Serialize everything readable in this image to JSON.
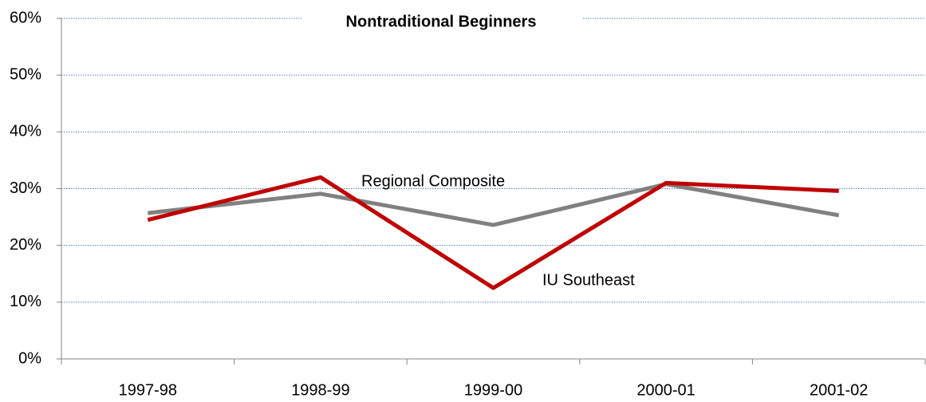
{
  "chart_data": {
    "type": "line",
    "title": "Nontraditional Beginners",
    "categories": [
      "1997-98",
      "1998-99",
      "1999-00",
      "2000-01",
      "2001-02"
    ],
    "series": [
      {
        "name": "IU Southeast",
        "color": "#c00000",
        "values": [
          24.5,
          32.0,
          12.5,
          31.0,
          29.6
        ]
      },
      {
        "name": "Regional Composite",
        "color": "#808080",
        "values": [
          25.7,
          29.1,
          23.6,
          30.8,
          25.3
        ]
      }
    ],
    "ylim": [
      0,
      60
    ],
    "yticks": [
      {
        "value": 0,
        "label": "0%"
      },
      {
        "value": 10,
        "label": "10%"
      },
      {
        "value": 20,
        "label": "20%"
      },
      {
        "value": 30,
        "label": "30%"
      },
      {
        "value": 40,
        "label": "40%"
      },
      {
        "value": 50,
        "label": "50%"
      },
      {
        "value": 60,
        "label": "60%"
      }
    ],
    "grid": true
  }
}
